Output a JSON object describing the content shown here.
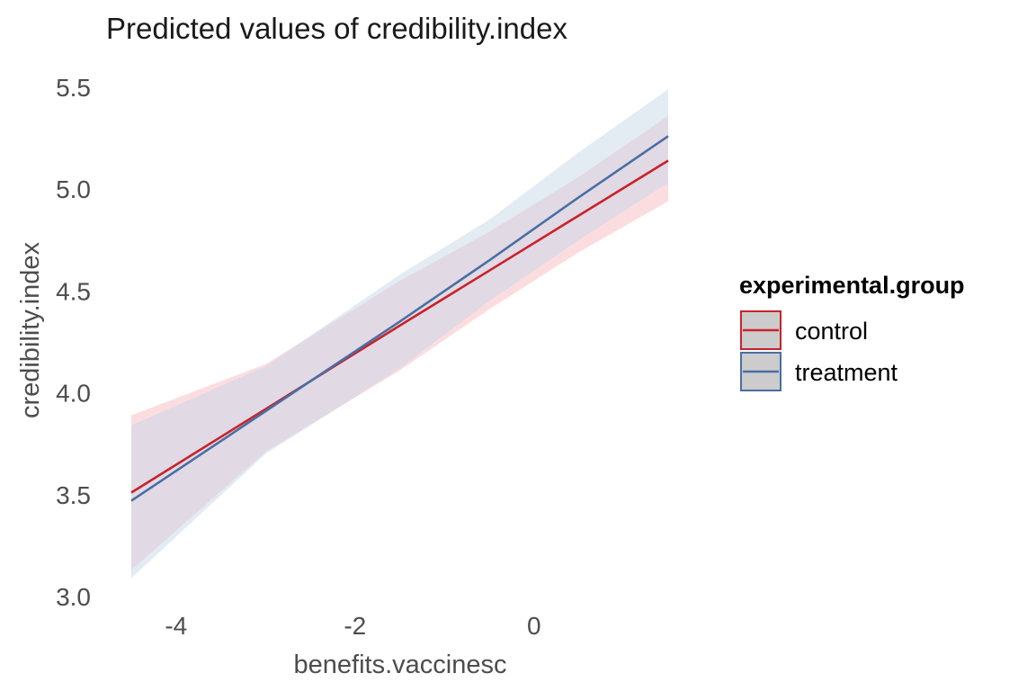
{
  "chart_data": {
    "type": "line",
    "title": "Predicted values of credibility.index",
    "xlabel": "benefits.vaccinesc",
    "ylabel": "credibility.index",
    "xlim": [
      -4.5,
      1.5
    ],
    "ylim": [
      3.0,
      5.5
    ],
    "xticks": [
      -4,
      -2,
      0
    ],
    "yticks": [
      3.0,
      3.5,
      4.0,
      4.5,
      5.0,
      5.5
    ],
    "xtick_labels": [
      "-4",
      "-2",
      "0"
    ],
    "ytick_labels": [
      "3.0",
      "3.5",
      "4.0",
      "4.5",
      "5.0",
      "5.5"
    ],
    "grid": false,
    "legend": {
      "title": "experimental.group",
      "position": "right"
    },
    "series": [
      {
        "name": "control",
        "color": "#c9222b",
        "fill": "#f8c7cb",
        "x": [
          -4.5,
          -3.0,
          -1.5,
          -0.5,
          0.5,
          1.5
        ],
        "y": [
          3.51,
          3.92,
          4.33,
          4.6,
          4.87,
          5.14
        ],
        "ci_low": [
          3.13,
          3.71,
          4.11,
          4.41,
          4.69,
          4.94
        ],
        "ci_high": [
          3.89,
          4.14,
          4.55,
          4.79,
          5.06,
          5.36
        ]
      },
      {
        "name": "treatment",
        "color": "#4a6ea5",
        "fill": "#c7d7e8",
        "x": [
          -4.5,
          -3.0,
          -1.5,
          -0.5,
          0.5,
          1.5
        ],
        "y": [
          3.47,
          3.91,
          4.35,
          4.65,
          4.96,
          5.26
        ],
        "ci_low": [
          3.09,
          3.7,
          4.12,
          4.45,
          4.75,
          5.03
        ],
        "ci_high": [
          3.84,
          4.13,
          4.58,
          4.85,
          5.18,
          5.49
        ]
      }
    ]
  }
}
